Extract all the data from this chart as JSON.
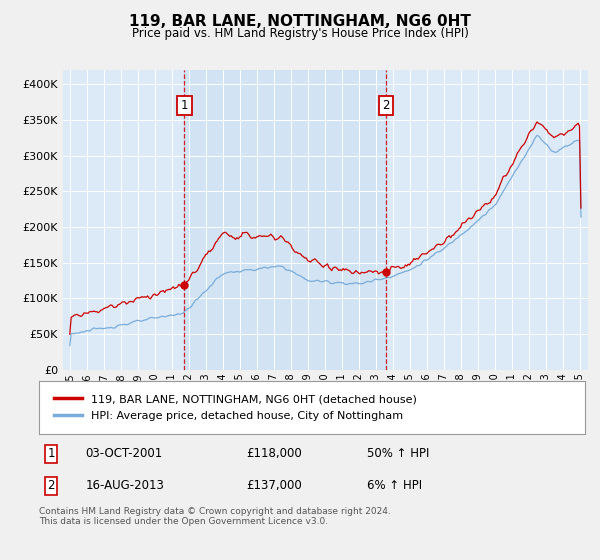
{
  "title": "119, BAR LANE, NOTTINGHAM, NG6 0HT",
  "subtitle": "Price paid vs. HM Land Registry's House Price Index (HPI)",
  "bg_color": "#f0f0f0",
  "plot_bg_color": "#dce9f7",
  "shade_color": "#c8dcf0",
  "line1_color": "#cc0000",
  "line2_color": "#7aacda",
  "grid_color": "#ffffff",
  "ylim": [
    0,
    420000
  ],
  "yticks": [
    0,
    50000,
    100000,
    150000,
    200000,
    250000,
    300000,
    350000,
    400000
  ],
  "ytick_labels": [
    "£0",
    "£50K",
    "£100K",
    "£150K",
    "£200K",
    "£250K",
    "£300K",
    "£350K",
    "£400K"
  ],
  "xmin": 1995,
  "xmax": 2025,
  "sale1_x": 2001.75,
  "sale1_y": 118000,
  "sale1_label": "1",
  "sale1_date": "03-OCT-2001",
  "sale1_price": "£118,000",
  "sale1_hpi": "50% ↑ HPI",
  "sale2_x": 2013.62,
  "sale2_y": 137000,
  "sale2_label": "2",
  "sale2_date": "16-AUG-2013",
  "sale2_price": "£137,000",
  "sale2_hpi": "6% ↑ HPI",
  "legend_line1": "119, BAR LANE, NOTTINGHAM, NG6 0HT (detached house)",
  "legend_line2": "HPI: Average price, detached house, City of Nottingham",
  "footer": "Contains HM Land Registry data © Crown copyright and database right 2024.\nThis data is licensed under the Open Government Licence v3.0."
}
